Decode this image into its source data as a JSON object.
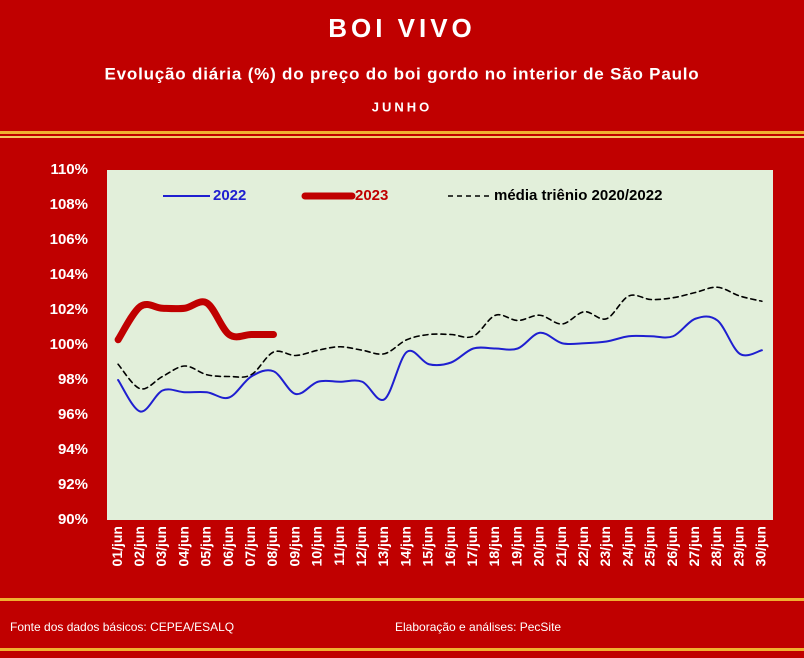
{
  "chart_data": {
    "type": "line",
    "title": "BOI VIVO",
    "subtitle": "Evolução diária (%) do preço do boi gordo no interior de São Paulo",
    "period": "JUNHO",
    "categories": [
      "01/jun",
      "02/jun",
      "03/jun",
      "04/jun",
      "05/jun",
      "06/jun",
      "07/jun",
      "08/jun",
      "09/jun",
      "10/jun",
      "11/jun",
      "12/jun",
      "13/jun",
      "14/jun",
      "15/jun",
      "16/jun",
      "17/jun",
      "18/jun",
      "19/jun",
      "20/jun",
      "21/jun",
      "22/jun",
      "23/jun",
      "24/jun",
      "25/jun",
      "26/jun",
      "27/jun",
      "28/jun",
      "29/jun",
      "30/jun"
    ],
    "series": [
      {
        "name": "2022",
        "color": "#1f1fd0",
        "width": 2,
        "dash": false,
        "values": [
          98.0,
          96.2,
          97.4,
          97.3,
          97.3,
          97.0,
          98.2,
          98.5,
          97.2,
          97.9,
          97.9,
          97.9,
          96.9,
          99.6,
          98.9,
          99.0,
          99.8,
          99.8,
          99.8,
          100.7,
          100.1,
          100.1,
          100.2,
          100.5,
          100.5,
          100.5,
          101.5,
          101.4,
          99.5,
          99.7
        ]
      },
      {
        "name": "2023",
        "color": "#c00000",
        "width": 7,
        "dash": false,
        "values": [
          100.3,
          102.2,
          102.1,
          102.1,
          102.4,
          100.6,
          100.6,
          100.6,
          null,
          null,
          null,
          null,
          null,
          null,
          null,
          null,
          null,
          null,
          null,
          null,
          null,
          null,
          null,
          null,
          null,
          null,
          null,
          null,
          null,
          null
        ]
      },
      {
        "name": "média triênio 2020/2022",
        "color": "#000000",
        "width": 1.6,
        "dash": true,
        "values": [
          98.9,
          97.5,
          98.2,
          98.8,
          98.3,
          98.2,
          98.3,
          99.6,
          99.4,
          99.7,
          99.9,
          99.7,
          99.5,
          100.3,
          100.6,
          100.6,
          100.5,
          101.7,
          101.4,
          101.7,
          101.2,
          101.9,
          101.5,
          102.8,
          102.6,
          102.7,
          103.0,
          103.3,
          102.8,
          102.5
        ]
      }
    ],
    "ylim": [
      90,
      110
    ],
    "yticks": [
      {
        "value": 90,
        "label": "90%"
      },
      {
        "value": 92,
        "label": "92%"
      },
      {
        "value": 94,
        "label": "94%"
      },
      {
        "value": 96,
        "label": "96%"
      },
      {
        "value": 98,
        "label": "98%"
      },
      {
        "value": 100,
        "label": "100%"
      },
      {
        "value": 102,
        "label": "102%"
      },
      {
        "value": 104,
        "label": "104%"
      },
      {
        "value": 106,
        "label": "106%"
      },
      {
        "value": 108,
        "label": "108%"
      },
      {
        "value": 110,
        "label": "110%"
      }
    ],
    "grid": false,
    "legend": "top",
    "source": "Fonte dos dados básicos: CEPEA/ESALQ",
    "credit": "Elaboração e análises: PecSite"
  }
}
